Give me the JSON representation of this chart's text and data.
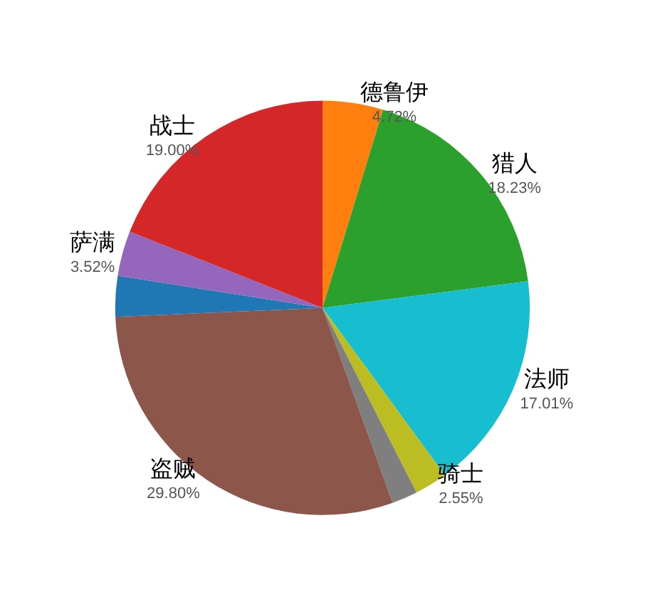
{
  "chart_data": {
    "type": "pie",
    "categories": [
      "德鲁伊",
      "猎人",
      "法师",
      "骑士",
      null,
      "盗贼",
      null,
      "萨满",
      "战士"
    ],
    "values": [
      4.72,
      18.23,
      17.01,
      2.55,
      2.0,
      29.8,
      3.17,
      3.52,
      19.0
    ],
    "colors": [
      "#ff7f0e",
      "#2ca02c",
      "#17becf",
      "#bcbd22",
      "#7f7f7f",
      "#8c564b",
      "#1f77b4",
      "#9467bd",
      "#d62728"
    ],
    "value_labels": [
      "4.72%",
      "18.23%",
      "17.01%",
      "2.55%",
      null,
      "29.80%",
      null,
      "3.52%",
      "19.00%"
    ],
    "legend": false
  }
}
